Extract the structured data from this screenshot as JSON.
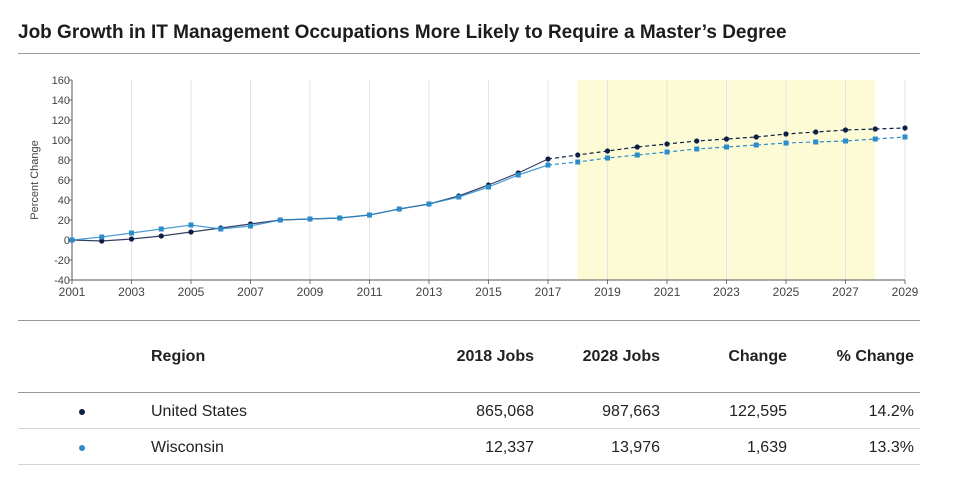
{
  "title": "Job Growth in IT Management Occupations More Likely to Require a Master’s Degree",
  "colors": {
    "us": "#0e1f45",
    "wi": "#2b8ccc",
    "projection_band": "#fdfbd5",
    "grid": "#e3e3e3"
  },
  "chart_data": {
    "type": "line",
    "title": "",
    "xlabel": "",
    "ylabel": "Percent Change",
    "xlim": [
      2001,
      2029
    ],
    "ylim": [
      -40,
      160
    ],
    "x_ticks": [
      "2001",
      "2003",
      "2005",
      "2007",
      "2009",
      "2011",
      "2013",
      "2015",
      "2017",
      "2019",
      "2021",
      "2023",
      "2025",
      "2027",
      "2029"
    ],
    "y_ticks": [
      "160",
      "140",
      "120",
      "100",
      "80",
      "60",
      "40",
      "20",
      "0",
      "-20",
      "-40"
    ],
    "grid": "vertical",
    "projection_band": [
      2018,
      2028
    ],
    "projection_start": 2017,
    "x": [
      2001,
      2002,
      2003,
      2004,
      2005,
      2006,
      2007,
      2008,
      2009,
      2010,
      2011,
      2012,
      2013,
      2014,
      2015,
      2016,
      2017,
      2018,
      2019,
      2020,
      2021,
      2022,
      2023,
      2024,
      2025,
      2026,
      2027,
      2028,
      2029
    ],
    "series": [
      {
        "name": "United States",
        "marker": "circle",
        "values": [
          0,
          -1,
          1,
          4,
          8,
          12,
          16,
          20,
          21,
          22,
          25,
          31,
          36,
          44,
          55,
          67,
          81,
          85,
          89,
          93,
          96,
          99,
          101,
          103,
          106,
          108,
          110,
          111,
          112
        ]
      },
      {
        "name": "Wisconsin",
        "marker": "square",
        "values": [
          0,
          3,
          7,
          11,
          15,
          11,
          14,
          20,
          21,
          22,
          25,
          31,
          36,
          43,
          53,
          65,
          75,
          78,
          82,
          85,
          88,
          91,
          93,
          95,
          97,
          98,
          99,
          101,
          103
        ]
      }
    ]
  },
  "table": {
    "headers": {
      "region": "Region",
      "jobs_2018": "2018 Jobs",
      "jobs_2028": "2028 Jobs",
      "change": "Change",
      "pct_change": "% Change"
    },
    "rows": [
      {
        "region": "United States",
        "jobs_2018": "865,068",
        "jobs_2028": "987,663",
        "change": "122,595",
        "pct_change": "14.2%"
      },
      {
        "region": "Wisconsin",
        "jobs_2018": "12,337",
        "jobs_2028": "13,976",
        "change": "1,639",
        "pct_change": "13.3%"
      }
    ]
  }
}
